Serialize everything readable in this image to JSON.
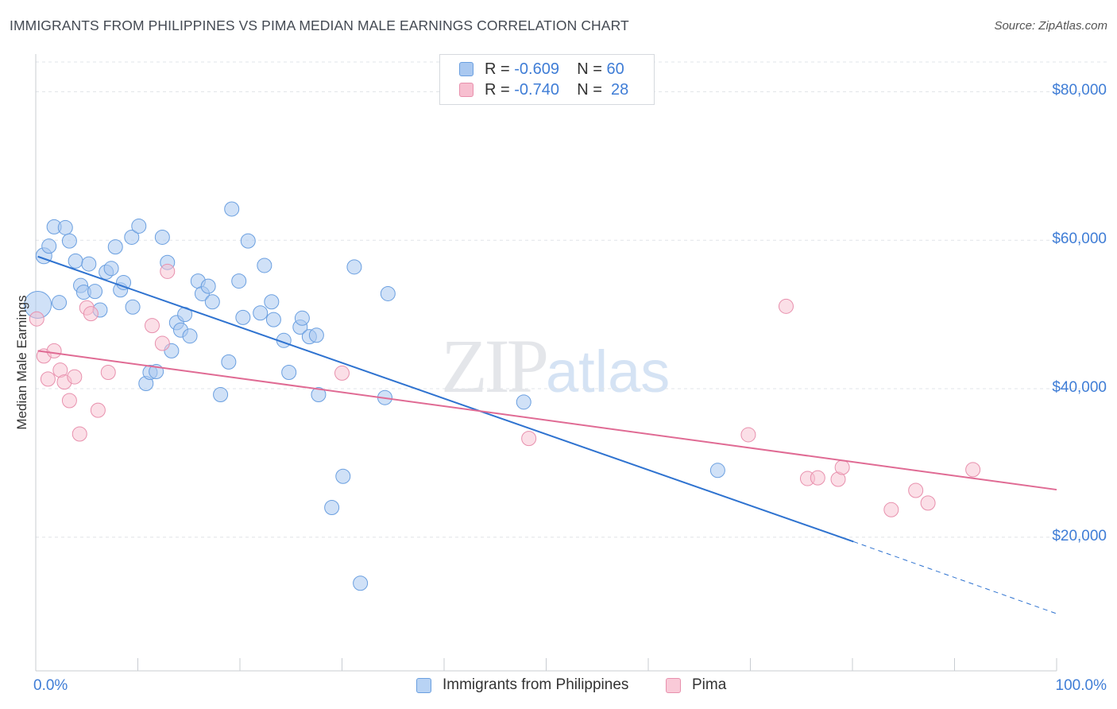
{
  "title": "IMMIGRANTS FROM PHILIPPINES VS PIMA MEDIAN MALE EARNINGS CORRELATION CHART",
  "source": "Source: ZipAtlas.com",
  "watermark": {
    "zip": "ZIP",
    "atlas": "atlas"
  },
  "legend": {
    "rows": [
      {
        "r_label": "R =",
        "r_value": "-0.609",
        "n_label": "N =",
        "n_value": "60",
        "color": "#a9c8f0",
        "border": "#6a9fe0"
      },
      {
        "r_label": "R =",
        "r_value": "-0.740",
        "n_label": "N =",
        "n_value": "28",
        "color": "#f7bfd0",
        "border": "#e890ad"
      }
    ]
  },
  "bottom_legend": [
    {
      "label": "Immigrants from Philippines",
      "color": "#b8d3f4",
      "border": "#6a9fe0"
    },
    {
      "label": "Pima",
      "color": "#f9cad8",
      "border": "#e890ad"
    }
  ],
  "chart_data": {
    "type": "scatter",
    "title": "IMMIGRANTS FROM PHILIPPINES VS PIMA MEDIAN MALE EARNINGS CORRELATION CHART",
    "xlabel": "",
    "ylabel": "Median Male Earnings",
    "x_tick_labels": [
      "0.0%",
      "100.0%"
    ],
    "y_tick_labels": [
      "$20,000",
      "$40,000",
      "$60,000",
      "$80,000"
    ],
    "xlim": [
      0,
      100
    ],
    "ylim": [
      2000,
      84000
    ],
    "grid": true,
    "series": [
      {
        "name": "Immigrants from Philippines",
        "color": "#6a9fe0",
        "fill": "rgba(169,200,240,0.55)",
        "trend": {
          "x0": 0.2,
          "y0": 57800,
          "x1": 80.1,
          "y1": 19400,
          "dashed_to_x": 100,
          "dashed_to_y": 9700,
          "color": "#2f73d0"
        },
        "points": [
          [
            0.2,
            51300,
            17
          ],
          [
            0.8,
            57900,
            10
          ],
          [
            1.3,
            59200,
            9
          ],
          [
            1.8,
            61800,
            9
          ],
          [
            2.3,
            51600,
            9
          ],
          [
            2.9,
            61700,
            9
          ],
          [
            3.3,
            59900,
            9
          ],
          [
            3.9,
            57200,
            9
          ],
          [
            4.4,
            53900,
            9
          ],
          [
            4.7,
            53000,
            9
          ],
          [
            5.2,
            56800,
            9
          ],
          [
            5.8,
            53100,
            9
          ],
          [
            6.3,
            50600,
            9
          ],
          [
            6.9,
            55700,
            9
          ],
          [
            7.4,
            56200,
            9
          ],
          [
            7.8,
            59100,
            9
          ],
          [
            8.3,
            53300,
            9
          ],
          [
            8.6,
            54300,
            9
          ],
          [
            9.5,
            51000,
            9
          ],
          [
            9.4,
            60400,
            9
          ],
          [
            10.1,
            61900,
            9
          ],
          [
            10.8,
            40700,
            9
          ],
          [
            11.2,
            42200,
            9
          ],
          [
            11.8,
            42300,
            9
          ],
          [
            12.4,
            60400,
            9
          ],
          [
            12.9,
            57000,
            9
          ],
          [
            13.3,
            45100,
            9
          ],
          [
            13.8,
            48900,
            9
          ],
          [
            14.2,
            47900,
            9
          ],
          [
            14.6,
            50000,
            9
          ],
          [
            15.1,
            47100,
            9
          ],
          [
            15.9,
            54500,
            9
          ],
          [
            16.3,
            52800,
            9
          ],
          [
            16.9,
            53800,
            9
          ],
          [
            17.3,
            51700,
            9
          ],
          [
            18.1,
            39200,
            9
          ],
          [
            18.9,
            43600,
            9
          ],
          [
            19.2,
            64200,
            9
          ],
          [
            19.9,
            54500,
            9
          ],
          [
            20.3,
            49600,
            9
          ],
          [
            20.8,
            59900,
            9
          ],
          [
            22.0,
            50200,
            9
          ],
          [
            22.4,
            56600,
            9
          ],
          [
            23.1,
            51700,
            9
          ],
          [
            23.3,
            49300,
            9
          ],
          [
            24.3,
            46500,
            9
          ],
          [
            24.8,
            42200,
            9
          ],
          [
            25.9,
            48300,
            9
          ],
          [
            26.1,
            49500,
            9
          ],
          [
            26.8,
            47000,
            9
          ],
          [
            27.5,
            47200,
            9
          ],
          [
            27.7,
            39200,
            9
          ],
          [
            29.0,
            24000,
            9
          ],
          [
            30.1,
            28200,
            9
          ],
          [
            31.2,
            56400,
            9
          ],
          [
            31.8,
            13800,
            9
          ],
          [
            34.2,
            38800,
            9
          ],
          [
            34.5,
            52800,
            9
          ],
          [
            47.8,
            38200,
            9
          ],
          [
            66.8,
            29000,
            9
          ]
        ]
      },
      {
        "name": "Pima",
        "color": "#e890ad",
        "fill": "rgba(247,191,208,0.5)",
        "trend": {
          "x0": 0.2,
          "y0": 45100,
          "x1": 100,
          "y1": 26400,
          "color": "#e06b94"
        },
        "points": [
          [
            0.1,
            49400,
            9
          ],
          [
            0.8,
            44400,
            9
          ],
          [
            1.2,
            41300,
            9
          ],
          [
            1.8,
            45100,
            9
          ],
          [
            2.4,
            42500,
            9
          ],
          [
            2.8,
            40900,
            9
          ],
          [
            3.3,
            38400,
            9
          ],
          [
            3.8,
            41600,
            9
          ],
          [
            4.3,
            33900,
            9
          ],
          [
            5.0,
            50900,
            9
          ],
          [
            5.4,
            50100,
            9
          ],
          [
            6.1,
            37100,
            9
          ],
          [
            7.1,
            42200,
            9
          ],
          [
            11.4,
            48500,
            9
          ],
          [
            12.4,
            46100,
            9
          ],
          [
            12.9,
            55800,
            9
          ],
          [
            30.0,
            42100,
            9
          ],
          [
            48.3,
            33300,
            9
          ],
          [
            69.8,
            33800,
            9
          ],
          [
            73.5,
            51100,
            9
          ],
          [
            75.6,
            27900,
            9
          ],
          [
            76.6,
            28000,
            9
          ],
          [
            78.6,
            27800,
            9
          ],
          [
            79.0,
            29400,
            9
          ],
          [
            83.8,
            23700,
            9
          ],
          [
            86.2,
            26300,
            9
          ],
          [
            87.4,
            24600,
            9
          ],
          [
            91.8,
            29100,
            9
          ]
        ]
      }
    ]
  }
}
